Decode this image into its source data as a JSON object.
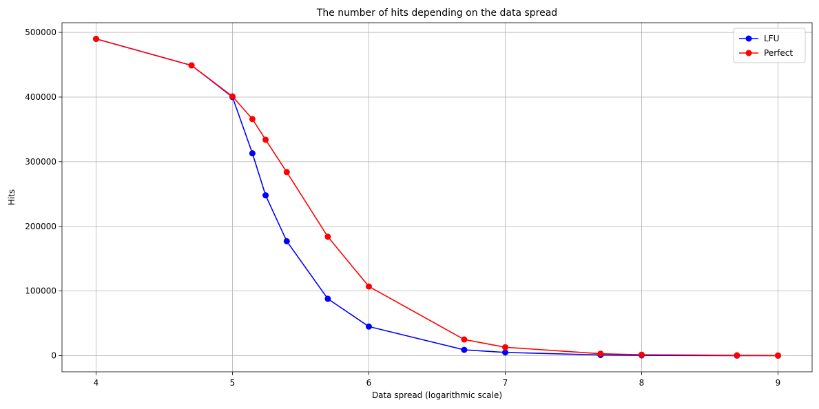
{
  "chart_data": {
    "type": "line",
    "title": "The number of hits depending on the data spread",
    "xlabel": "Data spread (logarithmic scale)",
    "ylabel": "Hits",
    "xlim": [
      3.75,
      9.25
    ],
    "ylim": [
      -25000,
      515000
    ],
    "xticks": [
      4,
      5,
      6,
      7,
      8,
      9
    ],
    "yticks": [
      0,
      100000,
      200000,
      300000,
      400000,
      500000
    ],
    "grid": true,
    "legend_position": "top-right",
    "marker": "circle",
    "series": [
      {
        "name": "LFU",
        "color": "#0000ff",
        "x": [
          4,
          4.7,
          5,
          5.146,
          5.243,
          5.398,
          5.699,
          6,
          6.699,
          7,
          7.699,
          8,
          8.699,
          9
        ],
        "y": [
          490000,
          449000,
          400000,
          313000,
          248000,
          177000,
          88000,
          45000,
          9000,
          5000,
          1000,
          500,
          100,
          50
        ]
      },
      {
        "name": "Perfect",
        "color": "#ff0000",
        "x": [
          4,
          4.7,
          5,
          5.146,
          5.243,
          5.398,
          5.699,
          6,
          6.699,
          7,
          7.699,
          8,
          8.699,
          9
        ],
        "y": [
          490000,
          449000,
          401000,
          366000,
          334000,
          284000,
          184000,
          107000,
          25000,
          13000,
          3000,
          1500,
          500,
          200
        ]
      }
    ]
  }
}
